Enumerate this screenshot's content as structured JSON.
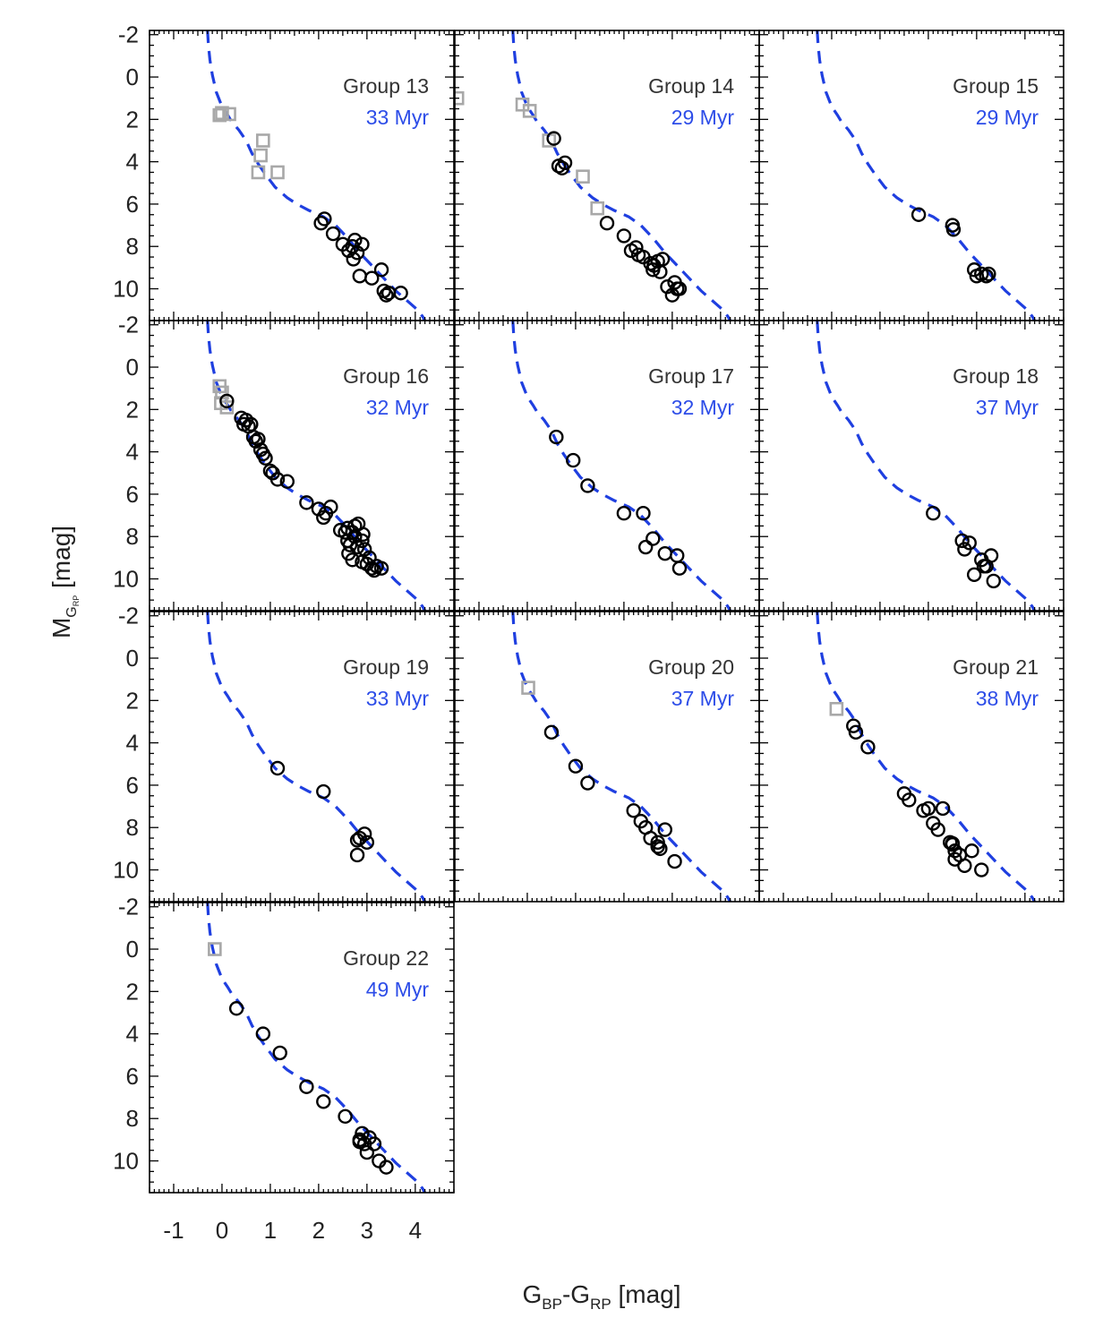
{
  "figure": {
    "xlabel": {
      "main": "G",
      "sub1": "BP",
      "dash": "-",
      "main2": "G",
      "sub2": "RP",
      "unit": " [mag]"
    },
    "ylabel": {
      "main": "M",
      "sub1": "G",
      "sub2": "RP",
      "unit": " [mag]"
    },
    "x_ticks": [
      "-1",
      "0",
      "1",
      "2",
      "3",
      "4"
    ],
    "y_ticks": [
      "-2",
      "0",
      "2",
      "4",
      "6",
      "8",
      "10"
    ]
  },
  "colors": {
    "isochrone": "#1f3fe0",
    "members": "#000000",
    "excluded": "#a8a8a8",
    "age_text": "#2d4de8",
    "group_text": "#333333"
  },
  "chart_data": [
    {
      "type": "scatter",
      "title": "Group 13",
      "age": "33 Myr",
      "xlim": [
        -1.5,
        4.8
      ],
      "ylim": [
        11.5,
        -2.2
      ],
      "circles": [
        [
          2.05,
          6.9
        ],
        [
          2.12,
          6.7
        ],
        [
          2.3,
          7.4
        ],
        [
          2.5,
          7.9
        ],
        [
          2.62,
          8.2
        ],
        [
          2.7,
          8.0
        ],
        [
          2.75,
          7.7
        ],
        [
          2.8,
          8.3
        ],
        [
          2.9,
          7.9
        ],
        [
          2.72,
          8.6
        ],
        [
          2.85,
          9.4
        ],
        [
          3.1,
          9.5
        ],
        [
          3.3,
          9.1
        ],
        [
          3.35,
          10.1
        ],
        [
          3.4,
          10.3
        ],
        [
          3.45,
          10.2
        ],
        [
          3.7,
          10.2
        ]
      ],
      "squares": [
        [
          -0.05,
          1.8
        ],
        [
          0.0,
          1.7
        ],
        [
          0.15,
          1.75
        ],
        [
          0.85,
          3.0
        ],
        [
          0.8,
          3.7
        ],
        [
          0.75,
          4.5
        ],
        [
          1.15,
          4.5
        ]
      ]
    },
    {
      "type": "scatter",
      "title": "Group 14",
      "age": "29 Myr",
      "xlim": [
        -1.5,
        4.8
      ],
      "ylim": [
        11.5,
        -2.2
      ],
      "circles": [
        [
          0.55,
          2.9
        ],
        [
          0.65,
          4.2
        ],
        [
          0.72,
          4.3
        ],
        [
          0.78,
          4.05
        ],
        [
          1.65,
          6.9
        ],
        [
          2.0,
          7.5
        ],
        [
          2.15,
          8.2
        ],
        [
          2.25,
          8.05
        ],
        [
          2.3,
          8.4
        ],
        [
          2.4,
          8.5
        ],
        [
          2.55,
          8.8
        ],
        [
          2.6,
          9.1
        ],
        [
          2.62,
          8.9
        ],
        [
          2.7,
          8.7
        ],
        [
          2.75,
          9.2
        ],
        [
          2.8,
          8.6
        ],
        [
          2.9,
          9.9
        ],
        [
          3.0,
          10.3
        ],
        [
          3.05,
          9.7
        ],
        [
          3.1,
          10.0
        ],
        [
          3.15,
          10.0
        ]
      ],
      "squares": [
        [
          -1.45,
          1.0
        ],
        [
          -0.1,
          1.3
        ],
        [
          0.05,
          1.6
        ],
        [
          0.45,
          3.0
        ],
        [
          1.15,
          4.7
        ],
        [
          1.45,
          6.2
        ]
      ]
    },
    {
      "type": "scatter",
      "title": "Group 15",
      "age": "29 Myr",
      "xlim": [
        -1.5,
        4.8
      ],
      "ylim": [
        11.5,
        -2.2
      ],
      "circles": [
        [
          1.8,
          6.5
        ],
        [
          2.5,
          7.0
        ],
        [
          2.52,
          7.2
        ],
        [
          2.95,
          9.1
        ],
        [
          3.0,
          9.4
        ],
        [
          3.1,
          9.3
        ],
        [
          3.2,
          9.4
        ],
        [
          3.25,
          9.3
        ]
      ],
      "squares": []
    },
    {
      "type": "scatter",
      "title": "Group 16",
      "age": "32 Myr",
      "xlim": [
        -1.5,
        4.8
      ],
      "ylim": [
        11.5,
        -2.2
      ],
      "circles": [
        [
          0.1,
          1.6
        ],
        [
          0.4,
          2.4
        ],
        [
          0.5,
          2.5
        ],
        [
          0.55,
          2.8
        ],
        [
          0.6,
          2.7
        ],
        [
          0.45,
          2.7
        ],
        [
          0.65,
          3.3
        ],
        [
          0.7,
          3.5
        ],
        [
          0.75,
          3.4
        ],
        [
          0.8,
          3.9
        ],
        [
          0.85,
          4.1
        ],
        [
          0.9,
          4.3
        ],
        [
          1.0,
          4.9
        ],
        [
          1.05,
          5.0
        ],
        [
          1.15,
          5.3
        ],
        [
          1.35,
          5.4
        ],
        [
          1.75,
          6.4
        ],
        [
          2.0,
          6.7
        ],
        [
          2.1,
          7.1
        ],
        [
          2.15,
          6.9
        ],
        [
          2.25,
          6.6
        ],
        [
          2.45,
          7.7
        ],
        [
          2.55,
          7.8
        ],
        [
          2.6,
          7.6
        ],
        [
          2.6,
          8.2
        ],
        [
          2.62,
          8.8
        ],
        [
          2.65,
          8.4
        ],
        [
          2.7,
          9.1
        ],
        [
          2.7,
          7.8
        ],
        [
          2.75,
          7.5
        ],
        [
          2.8,
          8.5
        ],
        [
          2.82,
          7.4
        ],
        [
          2.9,
          8.2
        ],
        [
          2.9,
          9.2
        ],
        [
          2.92,
          7.9
        ],
        [
          2.95,
          8.6
        ],
        [
          3.0,
          9.3
        ],
        [
          3.05,
          9.0
        ],
        [
          3.1,
          9.5
        ],
        [
          3.15,
          9.6
        ],
        [
          3.2,
          9.4
        ],
        [
          3.3,
          9.5
        ],
        [
          2.75,
          8.0
        ]
      ],
      "squares": [
        [
          -0.05,
          0.9
        ],
        [
          0.0,
          1.2
        ],
        [
          -0.02,
          1.7
        ],
        [
          0.1,
          1.9
        ]
      ]
    },
    {
      "type": "scatter",
      "title": "Group 17",
      "age": "32 Myr",
      "xlim": [
        -1.5,
        4.8
      ],
      "ylim": [
        11.5,
        -2.2
      ],
      "circles": [
        [
          0.6,
          3.3
        ],
        [
          0.95,
          4.4
        ],
        [
          1.25,
          5.6
        ],
        [
          2.0,
          6.9
        ],
        [
          2.4,
          6.9
        ],
        [
          2.45,
          8.5
        ],
        [
          2.6,
          8.1
        ],
        [
          2.85,
          8.8
        ],
        [
          3.1,
          8.9
        ],
        [
          3.15,
          9.5
        ]
      ],
      "squares": []
    },
    {
      "type": "scatter",
      "title": "Group 18",
      "age": "37 Myr",
      "xlim": [
        -1.5,
        4.8
      ],
      "ylim": [
        11.5,
        -2.2
      ],
      "circles": [
        [
          2.1,
          6.9
        ],
        [
          2.7,
          8.2
        ],
        [
          2.75,
          8.6
        ],
        [
          2.85,
          8.3
        ],
        [
          2.95,
          9.8
        ],
        [
          3.1,
          9.1
        ],
        [
          3.15,
          9.4
        ],
        [
          3.2,
          9.4
        ],
        [
          3.3,
          8.9
        ],
        [
          3.35,
          10.1
        ]
      ],
      "squares": []
    },
    {
      "type": "scatter",
      "title": "Group 19",
      "age": "33 Myr",
      "xlim": [
        -1.5,
        4.8
      ],
      "ylim": [
        11.5,
        -2.2
      ],
      "circles": [
        [
          1.15,
          5.2
        ],
        [
          2.1,
          6.3
        ],
        [
          2.8,
          8.6
        ],
        [
          2.85,
          8.5
        ],
        [
          2.95,
          8.3
        ],
        [
          3.0,
          8.7
        ],
        [
          2.8,
          9.3
        ]
      ],
      "squares": []
    },
    {
      "type": "scatter",
      "title": "Group 20",
      "age": "37 Myr",
      "xlim": [
        -1.5,
        4.8
      ],
      "ylim": [
        11.5,
        -2.2
      ],
      "circles": [
        [
          0.5,
          3.5
        ],
        [
          1.0,
          5.1
        ],
        [
          1.25,
          5.9
        ],
        [
          2.2,
          7.2
        ],
        [
          2.35,
          7.7
        ],
        [
          2.45,
          8.0
        ],
        [
          2.55,
          8.5
        ],
        [
          2.7,
          8.7
        ],
        [
          2.75,
          9.0
        ],
        [
          2.85,
          8.1
        ],
        [
          3.05,
          9.6
        ],
        [
          2.7,
          8.9
        ]
      ],
      "squares": [
        [
          0.02,
          1.4
        ]
      ]
    },
    {
      "type": "scatter",
      "title": "Group 21",
      "age": "38 Myr",
      "xlim": [
        -1.5,
        4.8
      ],
      "ylim": [
        11.5,
        -2.2
      ],
      "circles": [
        [
          0.45,
          3.2
        ],
        [
          0.5,
          3.5
        ],
        [
          0.75,
          4.2
        ],
        [
          1.5,
          6.4
        ],
        [
          1.6,
          6.7
        ],
        [
          1.9,
          7.2
        ],
        [
          2.0,
          7.1
        ],
        [
          2.1,
          7.8
        ],
        [
          2.2,
          8.1
        ],
        [
          2.3,
          7.1
        ],
        [
          2.45,
          8.7
        ],
        [
          2.5,
          8.8
        ],
        [
          2.55,
          9.1
        ],
        [
          2.55,
          9.5
        ],
        [
          2.65,
          9.3
        ],
        [
          2.75,
          9.8
        ],
        [
          2.9,
          9.1
        ],
        [
          3.1,
          10.0
        ],
        [
          2.5,
          8.75
        ]
      ],
      "squares": [
        [
          0.1,
          2.4
        ]
      ]
    },
    {
      "type": "scatter",
      "title": "Group 22",
      "age": "49 Myr",
      "xlim": [
        -1.5,
        4.8
      ],
      "ylim": [
        11.5,
        -2.2
      ],
      "circles": [
        [
          0.3,
          2.8
        ],
        [
          0.85,
          4.0
        ],
        [
          1.2,
          4.9
        ],
        [
          1.75,
          6.5
        ],
        [
          2.1,
          7.2
        ],
        [
          2.55,
          7.9
        ],
        [
          2.85,
          9.0
        ],
        [
          2.9,
          8.7
        ],
        [
          2.95,
          9.2
        ],
        [
          3.0,
          9.6
        ],
        [
          3.05,
          8.9
        ],
        [
          3.15,
          9.2
        ],
        [
          3.25,
          10.0
        ],
        [
          3.4,
          10.3
        ],
        [
          2.85,
          9.1
        ]
      ],
      "squares": [
        [
          -0.15,
          0.0
        ]
      ]
    }
  ],
  "isochrone": {
    "x": [
      -0.3,
      -0.28,
      -0.25,
      -0.2,
      -0.12,
      0.0,
      0.12,
      0.2,
      0.35,
      0.5,
      0.62,
      0.75,
      0.9,
      1.1,
      1.35,
      1.55,
      1.8,
      2.1,
      2.35,
      2.6,
      2.85,
      3.1,
      3.35,
      3.6,
      3.85,
      4.05,
      4.15,
      4.2
    ],
    "y": [
      -2.2,
      -1.5,
      -0.8,
      -0.1,
      0.7,
      1.4,
      1.8,
      2.1,
      2.5,
      3.0,
      3.6,
      4.1,
      4.6,
      5.2,
      5.7,
      6.0,
      6.3,
      6.6,
      7.0,
      7.6,
      8.3,
      8.9,
      9.5,
      10.1,
      10.6,
      11.0,
      11.3,
      11.5
    ]
  }
}
